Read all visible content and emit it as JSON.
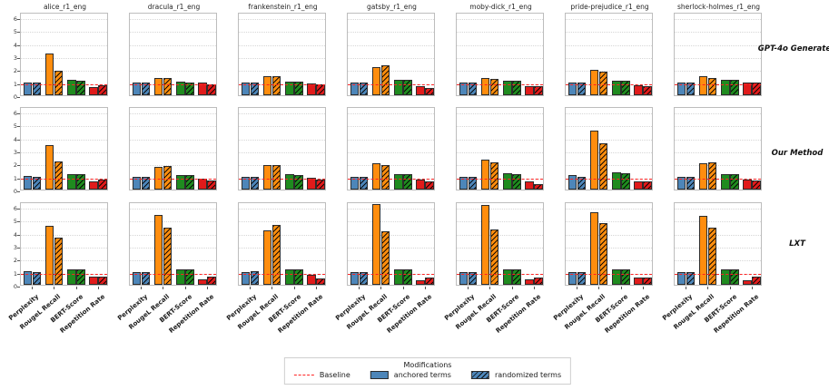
{
  "legend": {
    "title": "Modifications",
    "baseline_label": "Baseline",
    "anchored_label": "anchored terms",
    "randomized_label": "randomized terms"
  },
  "chart_data": {
    "type": "bar",
    "categories": [
      "Perplexity",
      "RougeL Recall",
      "BERT-Score",
      "Repetition Rate"
    ],
    "columns": [
      "alice_r1_eng",
      "dracula_r1_eng",
      "frankenstein_r1_eng",
      "gatsby_r1_eng",
      "moby-dick_r1_eng",
      "pride-prejudice_r1_eng",
      "sherlock-holmes_r1_eng"
    ],
    "rows": [
      "GPT-4o Generated",
      "Our Method",
      "LXT"
    ],
    "series_names": [
      "anchored terms",
      "randomized terms"
    ],
    "baseline": 1.0,
    "ylim": [
      0,
      6.4
    ],
    "yticks": [
      0,
      1,
      2,
      3,
      4,
      5,
      6
    ],
    "grid": true,
    "legend_position": "bottom-center",
    "colors": {
      "bars": [
        "#4d86b9",
        "#ff8d0e",
        "#1f8b1f",
        "#e01b1b"
      ],
      "baseline": "#ff2323",
      "hatch": "#000000"
    },
    "cells": [
      {
        "row": "GPT-4o Generated",
        "column": "alice_r1_eng",
        "anchored": [
          1.0,
          3.2,
          1.2,
          0.65
        ],
        "randomized": [
          1.0,
          1.9,
          1.1,
          0.75
        ]
      },
      {
        "row": "GPT-4o Generated",
        "column": "dracula_r1_eng",
        "anchored": [
          1.0,
          1.3,
          1.05,
          0.95
        ],
        "randomized": [
          1.0,
          1.35,
          1.0,
          0.85
        ]
      },
      {
        "row": "GPT-4o Generated",
        "column": "frankenstein_r1_eng",
        "anchored": [
          1.0,
          1.45,
          1.05,
          0.9
        ],
        "randomized": [
          1.0,
          1.45,
          1.05,
          0.85
        ]
      },
      {
        "row": "GPT-4o Generated",
        "column": "gatsby_r1_eng",
        "anchored": [
          1.0,
          2.15,
          1.2,
          0.7
        ],
        "randomized": [
          1.0,
          2.3,
          1.2,
          0.55
        ]
      },
      {
        "row": "GPT-4o Generated",
        "column": "moby-dick_r1_eng",
        "anchored": [
          1.0,
          1.3,
          1.1,
          0.7
        ],
        "randomized": [
          1.0,
          1.25,
          1.1,
          0.7
        ]
      },
      {
        "row": "GPT-4o Generated",
        "column": "pride-prejudice_r1_eng",
        "anchored": [
          1.0,
          1.95,
          1.1,
          0.75
        ],
        "randomized": [
          1.0,
          1.8,
          1.1,
          0.7
        ]
      },
      {
        "row": "GPT-4o Generated",
        "column": "sherlock-holmes_r1_eng",
        "anchored": [
          1.0,
          1.45,
          1.15,
          1.0
        ],
        "randomized": [
          1.0,
          1.3,
          1.15,
          1.0
        ]
      },
      {
        "row": "Our Method",
        "column": "alice_r1_eng",
        "anchored": [
          1.05,
          3.4,
          1.2,
          0.6
        ],
        "randomized": [
          1.0,
          2.15,
          1.15,
          0.75
        ]
      },
      {
        "row": "Our Method",
        "column": "dracula_r1_eng",
        "anchored": [
          1.0,
          1.75,
          1.1,
          0.85
        ],
        "randomized": [
          1.0,
          1.8,
          1.1,
          0.7
        ]
      },
      {
        "row": "Our Method",
        "column": "frankenstein_r1_eng",
        "anchored": [
          1.0,
          1.9,
          1.15,
          0.9
        ],
        "randomized": [
          1.0,
          1.85,
          1.1,
          0.75
        ]
      },
      {
        "row": "Our Method",
        "column": "gatsby_r1_eng",
        "anchored": [
          1.0,
          2.0,
          1.2,
          0.75
        ],
        "randomized": [
          1.0,
          1.85,
          1.2,
          0.6
        ]
      },
      {
        "row": "Our Method",
        "column": "moby-dick_r1_eng",
        "anchored": [
          1.0,
          2.3,
          1.25,
          0.65
        ],
        "randomized": [
          1.0,
          2.1,
          1.2,
          0.45
        ]
      },
      {
        "row": "Our Method",
        "column": "pride-prejudice_r1_eng",
        "anchored": [
          1.1,
          4.5,
          1.3,
          0.6
        ],
        "randomized": [
          1.0,
          3.55,
          1.25,
          0.65
        ]
      },
      {
        "row": "Our Method",
        "column": "sherlock-holmes_r1_eng",
        "anchored": [
          1.0,
          2.0,
          1.15,
          0.8
        ],
        "randomized": [
          1.0,
          2.1,
          1.15,
          0.7
        ]
      },
      {
        "row": "LXT",
        "column": "alice_r1_eng",
        "anchored": [
          1.05,
          4.55,
          1.15,
          0.6
        ],
        "randomized": [
          1.0,
          3.65,
          1.15,
          0.6
        ]
      },
      {
        "row": "LXT",
        "column": "dracula_r1_eng",
        "anchored": [
          1.0,
          5.35,
          1.15,
          0.45
        ],
        "randomized": [
          1.0,
          4.4,
          1.15,
          0.65
        ]
      },
      {
        "row": "LXT",
        "column": "frankenstein_r1_eng",
        "anchored": [
          1.0,
          4.15,
          1.15,
          0.75
        ],
        "randomized": [
          1.05,
          4.6,
          1.2,
          0.5
        ]
      },
      {
        "row": "LXT",
        "column": "gatsby_r1_eng",
        "anchored": [
          1.0,
          6.2,
          1.2,
          0.35
        ],
        "randomized": [
          1.0,
          4.1,
          1.15,
          0.55
        ]
      },
      {
        "row": "LXT",
        "column": "moby-dick_r1_eng",
        "anchored": [
          1.0,
          6.1,
          1.2,
          0.4
        ],
        "randomized": [
          1.0,
          4.25,
          1.2,
          0.55
        ]
      },
      {
        "row": "LXT",
        "column": "pride-prejudice_r1_eng",
        "anchored": [
          1.0,
          5.55,
          1.2,
          0.55
        ],
        "randomized": [
          1.0,
          4.7,
          1.2,
          0.55
        ]
      },
      {
        "row": "LXT",
        "column": "sherlock-holmes_r1_eng",
        "anchored": [
          1.0,
          5.3,
          1.2,
          0.35
        ],
        "randomized": [
          1.0,
          4.35,
          1.2,
          0.6
        ]
      }
    ]
  }
}
